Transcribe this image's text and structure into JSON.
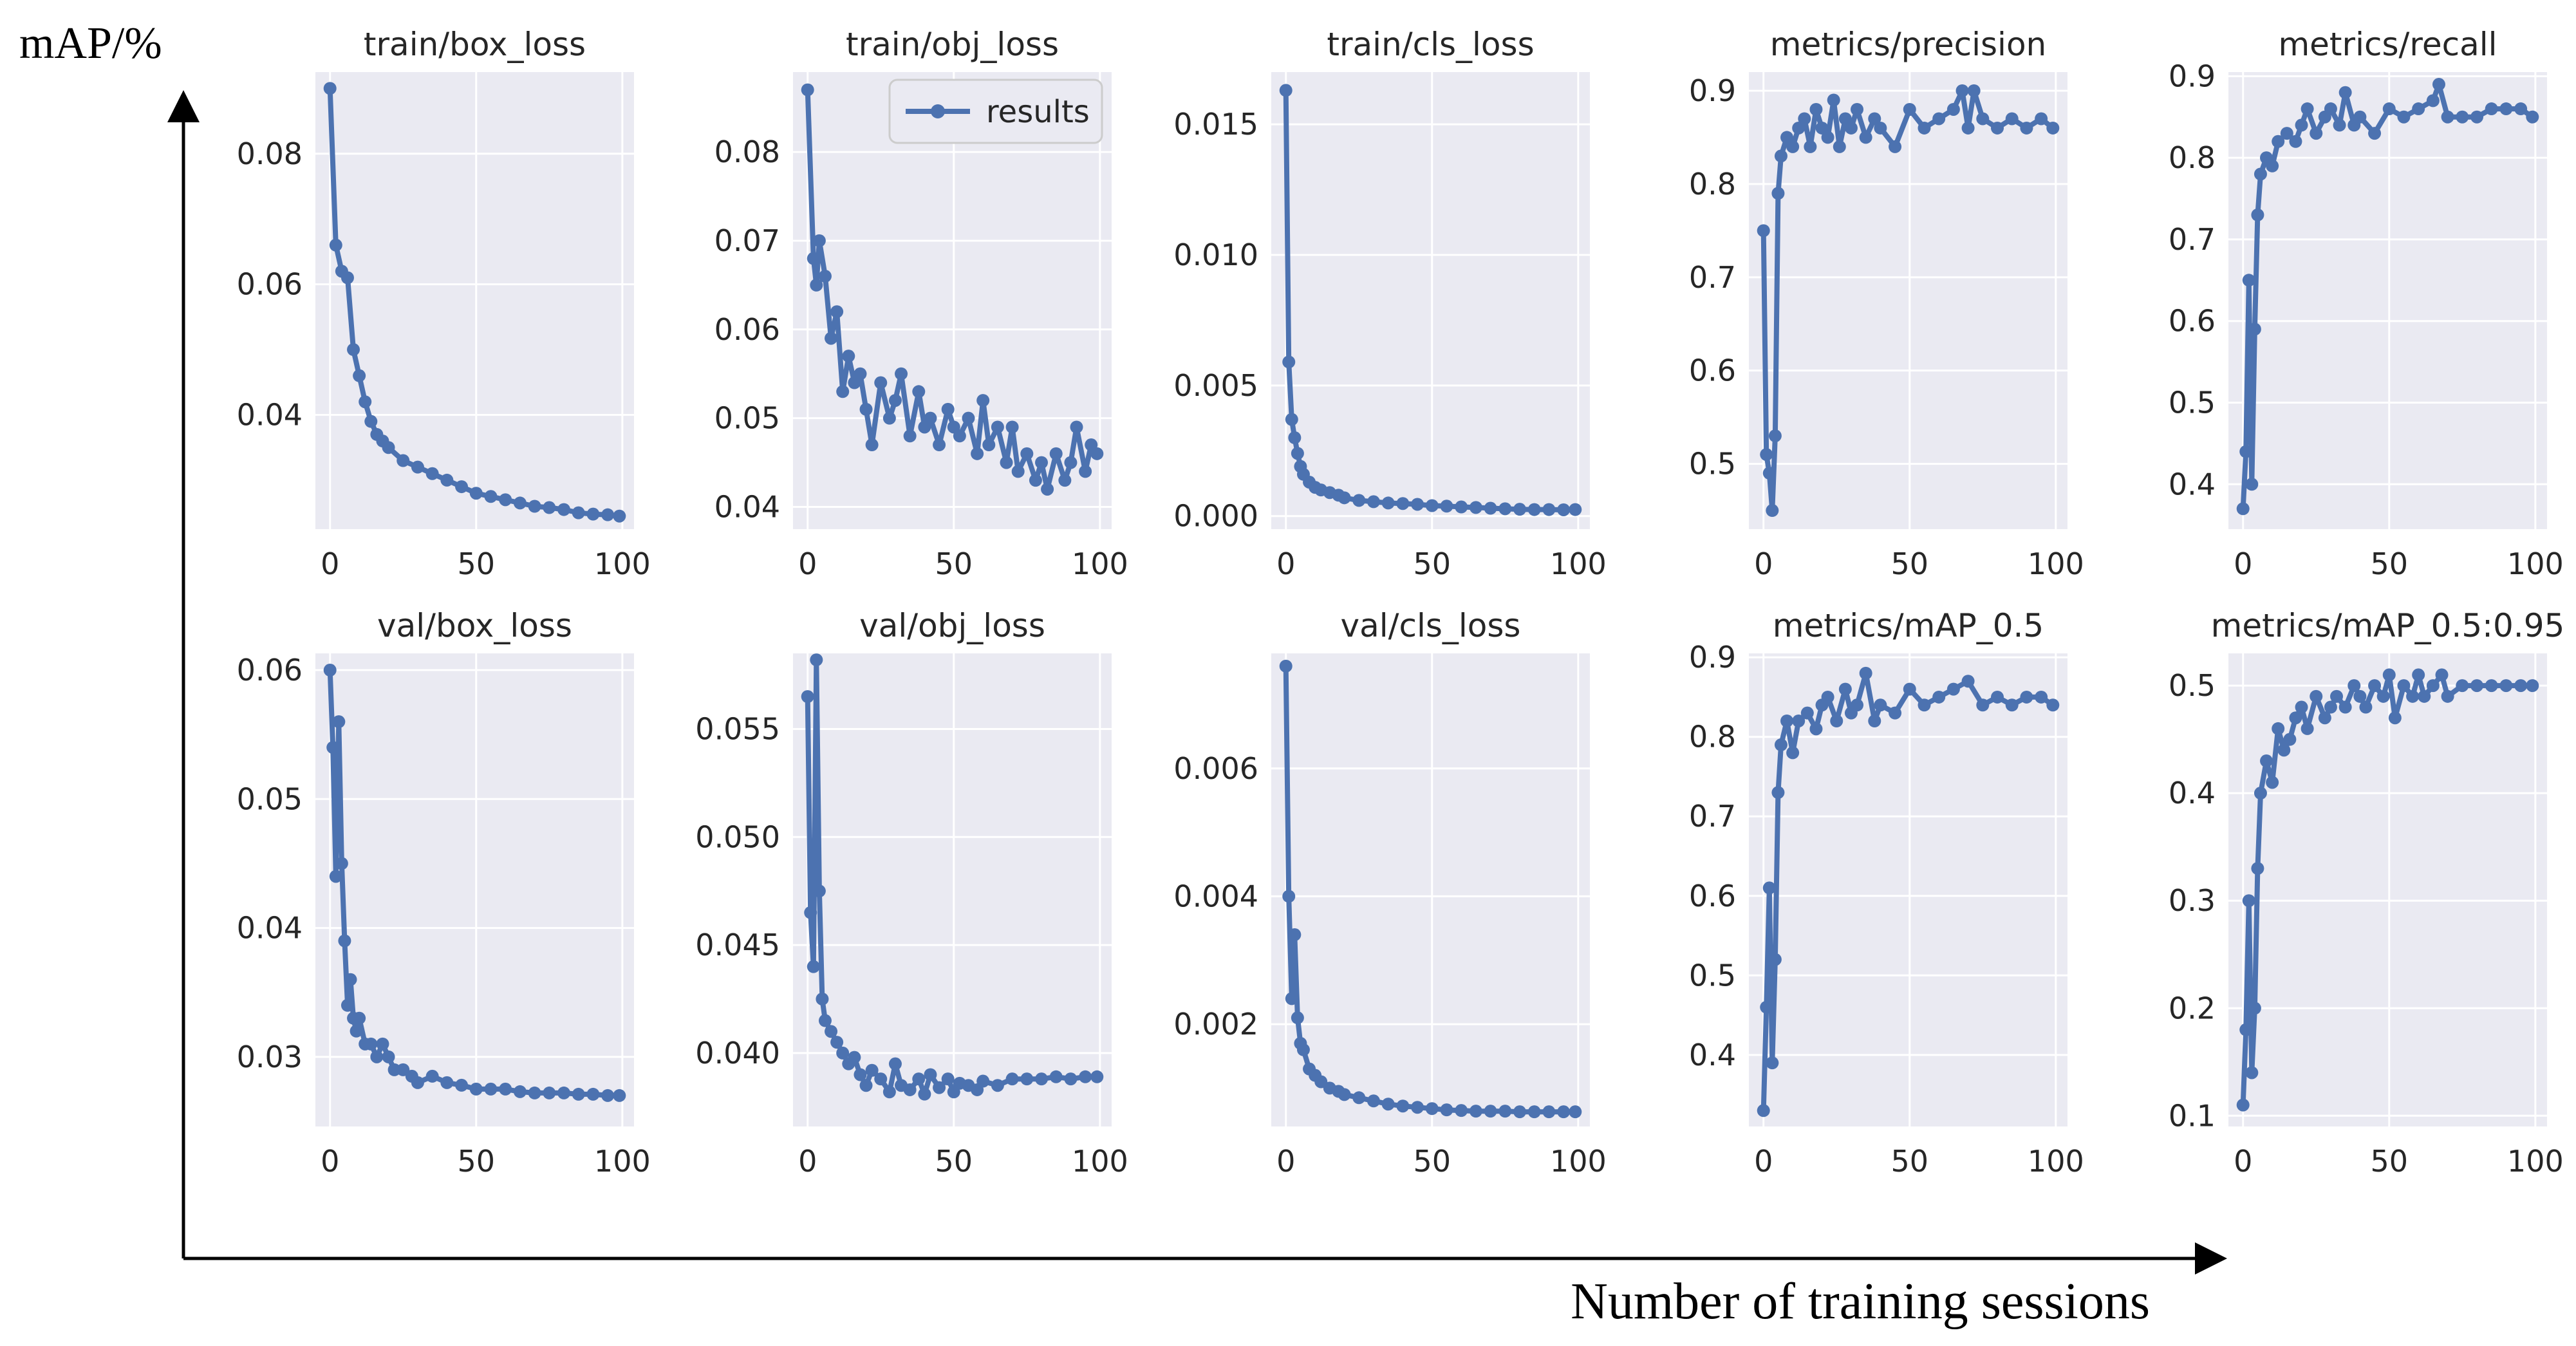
{
  "figure": {
    "y_axis_label": "mAP/%",
    "x_axis_label": "Number of training sessions",
    "colors": {
      "line": "#4c72b0",
      "panel_bg": "#eaeaf2",
      "grid": "#ffffff",
      "text": "#262626",
      "background": "#ffffff"
    }
  },
  "chart_data": [
    {
      "type": "line",
      "title": "train/box_loss",
      "series_name": "results",
      "xlim": [
        -5,
        104
      ],
      "ylim": [
        0.0225,
        0.0925
      ],
      "xticks": [
        0,
        50,
        100
      ],
      "xtick_labels": [
        "0",
        "50",
        "100"
      ],
      "yticks": [
        0.04,
        0.06,
        0.08
      ],
      "ytick_labels": [
        "0.04",
        "0.06",
        "0.08"
      ],
      "x": [
        0,
        2,
        4,
        6,
        8,
        10,
        12,
        14,
        16,
        18,
        20,
        25,
        30,
        35,
        40,
        45,
        50,
        55,
        60,
        65,
        70,
        75,
        80,
        85,
        90,
        95,
        99
      ],
      "y": [
        0.09,
        0.066,
        0.062,
        0.061,
        0.05,
        0.046,
        0.042,
        0.039,
        0.037,
        0.036,
        0.035,
        0.033,
        0.032,
        0.031,
        0.03,
        0.029,
        0.028,
        0.0275,
        0.027,
        0.0265,
        0.026,
        0.0258,
        0.0255,
        0.025,
        0.0248,
        0.0247,
        0.0245
      ]
    },
    {
      "type": "line",
      "title": "train/obj_loss",
      "series_name": "results",
      "legend": "top-right",
      "xlim": [
        -5,
        104
      ],
      "ylim": [
        0.0375,
        0.089
      ],
      "xticks": [
        0,
        50,
        100
      ],
      "xtick_labels": [
        "0",
        "50",
        "100"
      ],
      "yticks": [
        0.04,
        0.05,
        0.06,
        0.07,
        0.08
      ],
      "ytick_labels": [
        "0.04",
        "0.05",
        "0.06",
        "0.07",
        "0.08"
      ],
      "x": [
        0,
        2,
        3,
        4,
        6,
        8,
        10,
        12,
        14,
        16,
        18,
        20,
        22,
        25,
        28,
        30,
        32,
        35,
        38,
        40,
        42,
        45,
        48,
        50,
        52,
        55,
        58,
        60,
        62,
        65,
        68,
        70,
        72,
        75,
        78,
        80,
        82,
        85,
        88,
        90,
        92,
        95,
        97,
        99
      ],
      "y": [
        0.087,
        0.068,
        0.065,
        0.07,
        0.066,
        0.059,
        0.062,
        0.053,
        0.057,
        0.054,
        0.055,
        0.051,
        0.047,
        0.054,
        0.05,
        0.052,
        0.055,
        0.048,
        0.053,
        0.049,
        0.05,
        0.047,
        0.051,
        0.049,
        0.048,
        0.05,
        0.046,
        0.052,
        0.047,
        0.049,
        0.045,
        0.049,
        0.044,
        0.046,
        0.043,
        0.045,
        0.042,
        0.046,
        0.043,
        0.045,
        0.049,
        0.044,
        0.047,
        0.046
      ]
    },
    {
      "type": "line",
      "title": "train/cls_loss",
      "series_name": "results",
      "xlim": [
        -5,
        104
      ],
      "ylim": [
        -0.0005,
        0.017
      ],
      "xticks": [
        0,
        50,
        100
      ],
      "xtick_labels": [
        "0",
        "50",
        "100"
      ],
      "yticks": [
        0.0,
        0.005,
        0.01,
        0.015
      ],
      "ytick_labels": [
        "0.000",
        "0.005",
        "0.010",
        "0.015"
      ],
      "x": [
        0,
        1,
        2,
        3,
        4,
        5,
        6,
        8,
        10,
        12,
        15,
        18,
        20,
        25,
        30,
        35,
        40,
        45,
        50,
        55,
        60,
        65,
        70,
        75,
        80,
        85,
        90,
        95,
        99
      ],
      "y": [
        0.0163,
        0.0059,
        0.0037,
        0.003,
        0.0024,
        0.0019,
        0.0016,
        0.0013,
        0.0011,
        0.001,
        0.0009,
        0.0008,
        0.0007,
        0.0006,
        0.00055,
        0.0005,
        0.00048,
        0.00045,
        0.0004,
        0.00038,
        0.00035,
        0.00033,
        0.0003,
        0.00028,
        0.00026,
        0.00025,
        0.00025,
        0.00024,
        0.00025
      ]
    },
    {
      "type": "line",
      "title": "metrics/precision",
      "series_name": "results",
      "xlim": [
        -5,
        104
      ],
      "ylim": [
        0.43,
        0.92
      ],
      "xticks": [
        0,
        50,
        100
      ],
      "xtick_labels": [
        "0",
        "50",
        "100"
      ],
      "yticks": [
        0.5,
        0.6,
        0.7,
        0.8,
        0.9
      ],
      "ytick_labels": [
        "0.5",
        "0.6",
        "0.7",
        "0.8",
        "0.9"
      ],
      "x": [
        0,
        1,
        2,
        3,
        4,
        5,
        6,
        8,
        10,
        12,
        14,
        16,
        18,
        20,
        22,
        24,
        26,
        28,
        30,
        32,
        35,
        38,
        40,
        45,
        50,
        55,
        60,
        65,
        68,
        70,
        72,
        75,
        80,
        85,
        90,
        95,
        99
      ],
      "y": [
        0.75,
        0.51,
        0.49,
        0.45,
        0.53,
        0.79,
        0.83,
        0.85,
        0.84,
        0.86,
        0.87,
        0.84,
        0.88,
        0.86,
        0.85,
        0.89,
        0.84,
        0.87,
        0.86,
        0.88,
        0.85,
        0.87,
        0.86,
        0.84,
        0.88,
        0.86,
        0.87,
        0.88,
        0.9,
        0.86,
        0.9,
        0.87,
        0.86,
        0.87,
        0.86,
        0.87,
        0.86
      ]
    },
    {
      "type": "line",
      "title": "metrics/recall",
      "series_name": "results",
      "xlim": [
        -5,
        104
      ],
      "ylim": [
        0.345,
        0.905
      ],
      "xticks": [
        0,
        50,
        100
      ],
      "xtick_labels": [
        "0",
        "50",
        "100"
      ],
      "yticks": [
        0.4,
        0.5,
        0.6,
        0.7,
        0.8,
        0.9
      ],
      "ytick_labels": [
        "0.4",
        "0.5",
        "0.6",
        "0.7",
        "0.8",
        "0.9"
      ],
      "x": [
        0,
        1,
        2,
        3,
        4,
        5,
        6,
        8,
        10,
        12,
        15,
        18,
        20,
        22,
        25,
        28,
        30,
        33,
        35,
        38,
        40,
        45,
        50,
        55,
        60,
        65,
        67,
        70,
        75,
        80,
        85,
        90,
        95,
        99
      ],
      "y": [
        0.37,
        0.44,
        0.65,
        0.4,
        0.59,
        0.73,
        0.78,
        0.8,
        0.79,
        0.82,
        0.83,
        0.82,
        0.84,
        0.86,
        0.83,
        0.85,
        0.86,
        0.84,
        0.88,
        0.84,
        0.85,
        0.83,
        0.86,
        0.85,
        0.86,
        0.87,
        0.89,
        0.85,
        0.85,
        0.85,
        0.86,
        0.86,
        0.86,
        0.85
      ]
    },
    {
      "type": "line",
      "title": "val/box_loss",
      "series_name": "results",
      "xlim": [
        -5,
        104
      ],
      "ylim": [
        0.0246,
        0.0613
      ],
      "xticks": [
        0,
        50,
        100
      ],
      "xtick_labels": [
        "0",
        "50",
        "100"
      ],
      "yticks": [
        0.03,
        0.04,
        0.05,
        0.06
      ],
      "ytick_labels": [
        "0.03",
        "0.04",
        "0.05",
        "0.06"
      ],
      "x": [
        0,
        1,
        2,
        3,
        4,
        5,
        6,
        7,
        8,
        9,
        10,
        12,
        14,
        16,
        18,
        20,
        22,
        25,
        28,
        30,
        35,
        40,
        45,
        50,
        55,
        60,
        65,
        70,
        75,
        80,
        85,
        90,
        95,
        99
      ],
      "y": [
        0.06,
        0.054,
        0.044,
        0.056,
        0.045,
        0.039,
        0.034,
        0.036,
        0.033,
        0.032,
        0.033,
        0.031,
        0.031,
        0.03,
        0.031,
        0.03,
        0.029,
        0.029,
        0.0285,
        0.028,
        0.0285,
        0.028,
        0.0278,
        0.0275,
        0.0275,
        0.0275,
        0.0273,
        0.0272,
        0.0272,
        0.0272,
        0.0271,
        0.0271,
        0.027,
        0.027
      ]
    },
    {
      "type": "line",
      "title": "val/obj_loss",
      "series_name": "results",
      "xlim": [
        -5,
        104
      ],
      "ylim": [
        0.0366,
        0.0585
      ],
      "xticks": [
        0,
        50,
        100
      ],
      "xtick_labels": [
        "0",
        "50",
        "100"
      ],
      "yticks": [
        0.04,
        0.045,
        0.05,
        0.055
      ],
      "ytick_labels": [
        "0.040",
        "0.045",
        "0.050",
        "0.055"
      ],
      "x": [
        0,
        1,
        2,
        3,
        4,
        5,
        6,
        8,
        10,
        12,
        14,
        16,
        18,
        20,
        22,
        25,
        28,
        30,
        32,
        35,
        38,
        40,
        42,
        45,
        48,
        50,
        52,
        55,
        58,
        60,
        65,
        70,
        75,
        80,
        85,
        90,
        95,
        99
      ],
      "y": [
        0.0565,
        0.0465,
        0.044,
        0.0582,
        0.0475,
        0.0425,
        0.0415,
        0.041,
        0.0405,
        0.04,
        0.0395,
        0.0398,
        0.039,
        0.0385,
        0.0392,
        0.0388,
        0.0382,
        0.0395,
        0.0385,
        0.0383,
        0.0388,
        0.0381,
        0.039,
        0.0384,
        0.0388,
        0.0382,
        0.0386,
        0.0385,
        0.0383,
        0.0387,
        0.0385,
        0.0388,
        0.0388,
        0.0388,
        0.0389,
        0.0388,
        0.0389,
        0.0389
      ]
    },
    {
      "type": "line",
      "title": "val/cls_loss",
      "series_name": "results",
      "xlim": [
        -5,
        104
      ],
      "ylim": [
        0.0004,
        0.0078
      ],
      "xticks": [
        0,
        50,
        100
      ],
      "xtick_labels": [
        "0",
        "50",
        "100"
      ],
      "yticks": [
        0.002,
        0.004,
        0.006
      ],
      "ytick_labels": [
        "0.002",
        "0.004",
        "0.006"
      ],
      "x": [
        0,
        1,
        2,
        3,
        4,
        5,
        6,
        8,
        10,
        12,
        15,
        18,
        20,
        25,
        30,
        35,
        40,
        45,
        50,
        55,
        60,
        65,
        70,
        75,
        80,
        85,
        90,
        95,
        99
      ],
      "y": [
        0.0076,
        0.004,
        0.0024,
        0.0034,
        0.0021,
        0.0017,
        0.0016,
        0.0013,
        0.0012,
        0.0011,
        0.001,
        0.00095,
        0.0009,
        0.00085,
        0.0008,
        0.00075,
        0.00072,
        0.0007,
        0.00068,
        0.00066,
        0.00065,
        0.00064,
        0.00064,
        0.00064,
        0.00063,
        0.00063,
        0.00063,
        0.00063,
        0.00063
      ]
    },
    {
      "type": "line",
      "title": "metrics/mAP_0.5",
      "series_name": "results",
      "xlim": [
        -5,
        104
      ],
      "ylim": [
        0.31,
        0.905
      ],
      "xticks": [
        0,
        50,
        100
      ],
      "xtick_labels": [
        "0",
        "50",
        "100"
      ],
      "yticks": [
        0.4,
        0.5,
        0.6,
        0.7,
        0.8,
        0.9
      ],
      "ytick_labels": [
        "0.4",
        "0.5",
        "0.6",
        "0.7",
        "0.8",
        "0.9"
      ],
      "x": [
        0,
        1,
        2,
        3,
        4,
        5,
        6,
        8,
        10,
        12,
        15,
        18,
        20,
        22,
        25,
        28,
        30,
        32,
        35,
        38,
        40,
        45,
        50,
        55,
        60,
        65,
        70,
        75,
        80,
        85,
        90,
        95,
        99
      ],
      "y": [
        0.33,
        0.46,
        0.61,
        0.39,
        0.52,
        0.73,
        0.79,
        0.82,
        0.78,
        0.82,
        0.83,
        0.81,
        0.84,
        0.85,
        0.82,
        0.86,
        0.83,
        0.84,
        0.88,
        0.82,
        0.84,
        0.83,
        0.86,
        0.84,
        0.85,
        0.86,
        0.87,
        0.84,
        0.85,
        0.84,
        0.85,
        0.85,
        0.84
      ]
    },
    {
      "type": "line",
      "title": "metrics/mAP_0.5:0.95",
      "series_name": "results",
      "xlim": [
        -5,
        104
      ],
      "ylim": [
        0.09,
        0.53
      ],
      "xticks": [
        0,
        50,
        100
      ],
      "xtick_labels": [
        "0",
        "50",
        "100"
      ],
      "yticks": [
        0.1,
        0.2,
        0.3,
        0.4,
        0.5
      ],
      "ytick_labels": [
        "0.1",
        "0.2",
        "0.3",
        "0.4",
        "0.5"
      ],
      "x": [
        0,
        1,
        2,
        3,
        4,
        5,
        6,
        8,
        10,
        12,
        14,
        16,
        18,
        20,
        22,
        25,
        28,
        30,
        32,
        35,
        38,
        40,
        42,
        45,
        48,
        50,
        52,
        55,
        58,
        60,
        62,
        65,
        68,
        70,
        75,
        80,
        85,
        90,
        95,
        99
      ],
      "y": [
        0.11,
        0.18,
        0.3,
        0.14,
        0.2,
        0.33,
        0.4,
        0.43,
        0.41,
        0.46,
        0.44,
        0.45,
        0.47,
        0.48,
        0.46,
        0.49,
        0.47,
        0.48,
        0.49,
        0.48,
        0.5,
        0.49,
        0.48,
        0.5,
        0.49,
        0.51,
        0.47,
        0.5,
        0.49,
        0.51,
        0.49,
        0.5,
        0.51,
        0.49,
        0.5,
        0.5,
        0.5,
        0.5,
        0.5,
        0.5
      ]
    }
  ]
}
